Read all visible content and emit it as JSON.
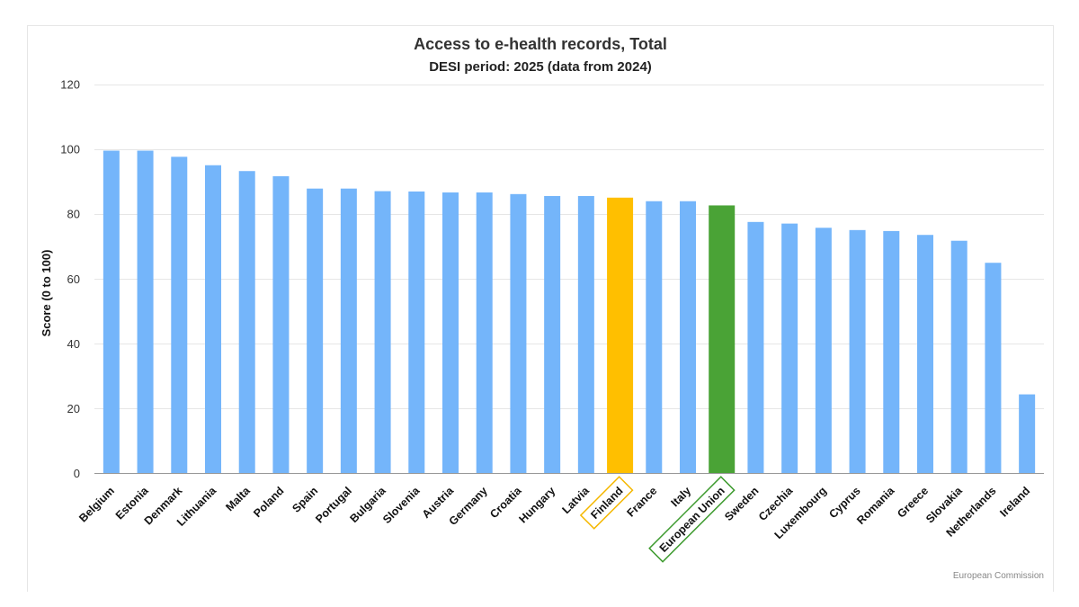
{
  "chart_data": {
    "type": "bar",
    "title": "Access to e-health records, Total",
    "subtitle": "DESI period: 2025 (data from 2024)",
    "xlabel": "",
    "ylabel": "Score (0 to 100)",
    "ylim": [
      0,
      120
    ],
    "yticks": [
      0,
      20,
      40,
      60,
      80,
      100,
      120
    ],
    "grid": true,
    "categories": [
      "Belgium",
      "Estonia",
      "Denmark",
      "Lithuania",
      "Malta",
      "Poland",
      "Spain",
      "Portugal",
      "Bulgaria",
      "Slovenia",
      "Austria",
      "Germany",
      "Croatia",
      "Hungary",
      "Latvia",
      "Finland",
      "France",
      "Italy",
      "European Union",
      "Sweden",
      "Czechia",
      "Luxembourg",
      "Cyprus",
      "Romania",
      "Greece",
      "Slovakia",
      "Netherlands",
      "Ireland"
    ],
    "values": [
      99.6,
      99.6,
      97.7,
      95.1,
      93.3,
      91.7,
      87.9,
      87.9,
      87.1,
      87.0,
      86.7,
      86.7,
      86.2,
      85.6,
      85.6,
      85.1,
      84.0,
      84.0,
      82.7,
      77.6,
      77.1,
      75.8,
      75.1,
      74.8,
      73.6,
      71.8,
      65.0,
      24.4
    ],
    "highlights": {
      "Finland": {
        "fill": "#ffbf00",
        "box": "#f5b800"
      },
      "European Union": {
        "fill": "#4aa336",
        "box": "#3c9a2d"
      }
    },
    "default_color": "#74b5fa"
  },
  "credit": "European Commission"
}
